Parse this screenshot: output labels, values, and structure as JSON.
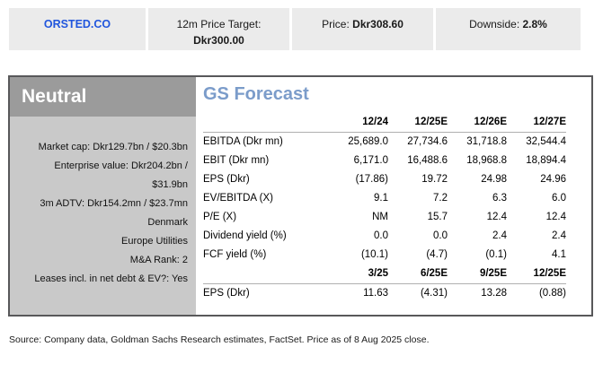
{
  "summary_bar": {
    "ticker": "ORSTED.CO",
    "price_target_label": "12m Price Target:",
    "price_target_value": "Dkr300.00",
    "price_label": "Price:",
    "price_value": "Dkr308.60",
    "downside_label": "Downside:",
    "downside_value": "2.8%"
  },
  "rating_panel": {
    "rating": "Neutral",
    "stats": [
      "Market cap: Dkr129.7bn / $20.3bn",
      "Enterprise value: Dkr204.2bn / $31.9bn",
      "3m ADTV: Dkr154.2mn / $23.7mn",
      "Denmark",
      "Europe Utilities",
      "M&A Rank: 2",
      "Leases incl. in net debt & EV?: Yes"
    ]
  },
  "forecast": {
    "title": "GS Forecast",
    "annual_headers": [
      "12/24",
      "12/25E",
      "12/26E",
      "12/27E"
    ],
    "annual_rows": [
      {
        "label": "EBITDA (Dkr mn)",
        "values": [
          "25,689.0",
          "27,734.6",
          "31,718.8",
          "32,544.4"
        ]
      },
      {
        "label": "EBIT (Dkr mn)",
        "values": [
          "6,171.0",
          "16,488.6",
          "18,968.8",
          "18,894.4"
        ]
      },
      {
        "label": "EPS (Dkr)",
        "values": [
          "(17.86)",
          "19.72",
          "24.98",
          "24.96"
        ]
      },
      {
        "label": "EV/EBITDA (X)",
        "values": [
          "9.1",
          "7.2",
          "6.3",
          "6.0"
        ]
      },
      {
        "label": "P/E (X)",
        "values": [
          "NM",
          "15.7",
          "12.4",
          "12.4"
        ]
      },
      {
        "label": "Dividend yield (%)",
        "values": [
          "0.0",
          "0.0",
          "2.4",
          "2.4"
        ]
      },
      {
        "label": "FCF yield (%)",
        "values": [
          "(10.1)",
          "(4.7)",
          "(0.1)",
          "4.1"
        ]
      }
    ],
    "quarterly_headers": [
      "3/25",
      "6/25E",
      "9/25E",
      "12/25E"
    ],
    "quarterly_rows": [
      {
        "label": "EPS (Dkr)",
        "values": [
          "11.63",
          "(4.31)",
          "13.28",
          "(0.88)"
        ]
      }
    ]
  },
  "source_note": "Source: Company data, Goldman Sachs Research estimates, FactSet. Price as of 8 Aug 2025 close.",
  "colors": {
    "ticker_blue": "#2156dd",
    "forecast_title_blue": "#7b9cca",
    "rating_header_gray": "#9b9b9b",
    "rating_body_gray": "#c9c9c9",
    "bar_gray": "#ebebeb",
    "panel_border": "#58585a"
  }
}
